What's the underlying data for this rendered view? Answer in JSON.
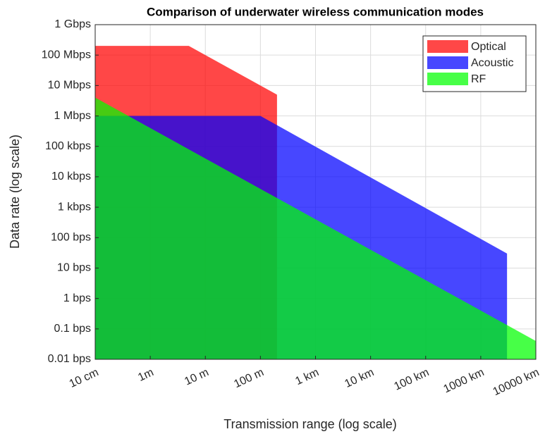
{
  "chart_data": {
    "type": "area",
    "title": "Comparison of underwater wireless communication modes",
    "xlabel": "Transmission range (log scale)",
    "ylabel": "Data rate (log scale)",
    "xscale": "log",
    "yscale": "log",
    "xlim": [
      0.1,
      10000000
    ],
    "ylim": [
      0.01,
      1000000000
    ],
    "xticks": [
      {
        "value": 0.1,
        "label": "10 cm"
      },
      {
        "value": 1,
        "label": "1m"
      },
      {
        "value": 10,
        "label": "10 m"
      },
      {
        "value": 100,
        "label": "100 m"
      },
      {
        "value": 1000,
        "label": "1 km"
      },
      {
        "value": 10000,
        "label": "10 km"
      },
      {
        "value": 100000,
        "label": "100 km"
      },
      {
        "value": 1000000,
        "label": "1000 km"
      },
      {
        "value": 10000000,
        "label": "10000 km"
      }
    ],
    "yticks": [
      {
        "value": 0.01,
        "label": "0.01 bps"
      },
      {
        "value": 0.1,
        "label": "0.1 bps"
      },
      {
        "value": 1,
        "label": "1 bps"
      },
      {
        "value": 10,
        "label": "10 bps"
      },
      {
        "value": 100,
        "label": "100 bps"
      },
      {
        "value": 1000,
        "label": "1 kbps"
      },
      {
        "value": 10000,
        "label": "10 kbps"
      },
      {
        "value": 100000,
        "label": "100 kbps"
      },
      {
        "value": 1000000,
        "label": "1 Mbps"
      },
      {
        "value": 10000000,
        "label": "10 Mbps"
      },
      {
        "value": 100000000,
        "label": "100 Mbps"
      },
      {
        "value": 1000000000,
        "label": "1 Gbps"
      }
    ],
    "grid": true,
    "legend": "upper right",
    "series": [
      {
        "name": "Optical",
        "color": "#ff0000",
        "x": [
          0.1,
          5,
          200
        ],
        "values": [
          200000000,
          200000000,
          5000000
        ]
      },
      {
        "name": "Acoustic",
        "color": "#0000ff",
        "x": [
          0.1,
          100,
          3000000
        ],
        "values": [
          1000000,
          1000000,
          30
        ]
      },
      {
        "name": "RF",
        "color": "#00ff00",
        "x": [
          0.1,
          10000000
        ],
        "values": [
          4000000,
          0.04
        ]
      }
    ]
  }
}
